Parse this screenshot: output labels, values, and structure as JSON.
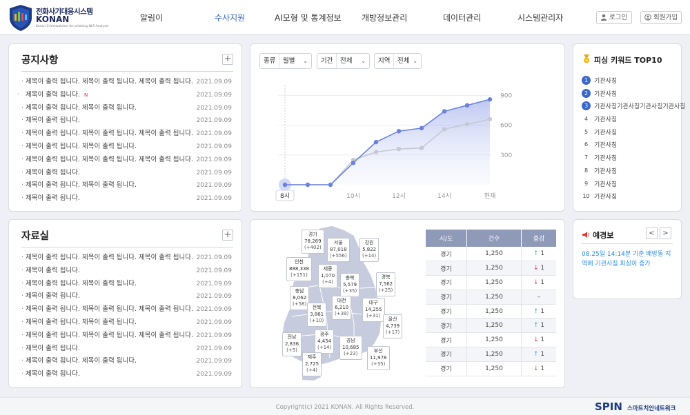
{
  "header": {
    "logo_title": "전화사기대응시스템",
    "logo_name": "KONAN",
    "logo_sub": "Konan Crimewatcher for phishing NLP Analysis",
    "nav": [
      "알림이",
      "수사지원",
      "AI모형 및 통계정보",
      "개방정보관리",
      "데이터관리",
      "시스템관리자"
    ],
    "active_nav": "수사지원",
    "login": "로그인",
    "signup": "회원가입"
  },
  "notice": {
    "title": "공지사항",
    "plus": "+",
    "items": [
      {
        "title": "제목이 출력 됩니다. 제목이 출력 됩니다. 제목이 출력 됩니다.",
        "new": false,
        "date": "2021.09.09"
      },
      {
        "title": "제목이 출력 됩니다.",
        "new": true,
        "date": "2021.09.09"
      },
      {
        "title": "제목이 출력 됩니다. 제목이 출력 됩니다.",
        "new": false,
        "date": "2021.09.09"
      },
      {
        "title": "제목이 출력 됩니다.",
        "new": false,
        "date": "2021.09.09"
      },
      {
        "title": "제목이 출력 됩니다. 제목이 출력 됩니다. 제목이 출력 됩니다.",
        "new": false,
        "date": "2021.09.09"
      },
      {
        "title": "제목이 출력 됩니다. 제목이 출력 됩니다.",
        "new": false,
        "date": "2021.09.09"
      },
      {
        "title": "제목이 출력 됩니다. 제목이 출력 됩니다. 제목이 출력 됩니다.",
        "new": false,
        "date": "2021.09.09"
      },
      {
        "title": "제목이 출력 됩니다.",
        "new": false,
        "date": "2021.09.09"
      },
      {
        "title": "제목이 출력 됩니다. 제목이 출력 됩니다.",
        "new": false,
        "date": "2021.09.09"
      },
      {
        "title": "제목이 출력 됩니다.",
        "new": false,
        "date": "2021.09.09"
      }
    ],
    "new_label": "N"
  },
  "archive": {
    "title": "자료실",
    "plus": "+",
    "items": [
      {
        "title": "제목이 출력 됩니다. 제목이 출력 됩니다. 제목이 출력 됩니다.",
        "date": "2021.09.09"
      },
      {
        "title": "제목이 출력 됩니다.",
        "date": "2021.09.09"
      },
      {
        "title": "제목이 출력 됩니다. 제목이 출력 됩니다.",
        "date": "2021.09.09"
      },
      {
        "title": "제목이 출력 됩니다.",
        "date": "2021.09.09"
      },
      {
        "title": "제목이 출력 됩니다. 제목이 출력 됩니다. 제목이 출력 됩니다.",
        "date": "2021.09.09"
      },
      {
        "title": "제목이 출력 됩니다. 제목이 출력 됩니다.",
        "date": "2021.09.09"
      },
      {
        "title": "제목이 출력 됩니다. 제목이 출력 됩니다. 제목이 출력 됩니다.",
        "date": "2021.09.09"
      },
      {
        "title": "제목이 출력 됩니다.",
        "date": "2021.09.09"
      },
      {
        "title": "제목이 출력 됩니다. 제목이 출력 됩니다.",
        "date": "2021.09.09"
      },
      {
        "title": "제목이 출력 됩니다.",
        "date": "2021.09.09"
      }
    ]
  },
  "filters": [
    {
      "label": "종류",
      "value": "월별"
    },
    {
      "label": "기간",
      "value": "전체"
    },
    {
      "label": "지역",
      "value": "전체"
    }
  ],
  "chart_data": {
    "type": "area",
    "x": [
      "8시",
      "",
      "",
      "10시",
      "",
      "12시",
      "",
      "14시",
      "",
      "현재"
    ],
    "xticks": [
      "8시",
      "10시",
      "12시",
      "14시",
      "현재"
    ],
    "highlight": "8시",
    "yticks": [
      900,
      600,
      300
    ],
    "ylim": [
      0,
      1000
    ],
    "series": [
      {
        "values": [
          0,
          0,
          0,
          220,
          430,
          540,
          570,
          740,
          800,
          860
        ],
        "color": "#6b82dd"
      },
      {
        "values": [
          0,
          0,
          0,
          250,
          330,
          360,
          370,
          560,
          610,
          660
        ],
        "color": "#c5c9d3"
      }
    ]
  },
  "top10": {
    "title": "피싱 키워드 TOP10",
    "items": [
      {
        "rank": "1",
        "keyword": "기관사칭"
      },
      {
        "rank": "2",
        "keyword": "기관사칭"
      },
      {
        "rank": "3",
        "keyword": "기관사칭기관사칭기관사칭기관사칭"
      },
      {
        "rank": "4",
        "keyword": "기관사칭"
      },
      {
        "rank": "5",
        "keyword": "기관사칭"
      },
      {
        "rank": "6",
        "keyword": "기관사칭"
      },
      {
        "rank": "7",
        "keyword": "기관사칭"
      },
      {
        "rank": "8",
        "keyword": "기관사칭"
      },
      {
        "rank": "9",
        "keyword": "기관사칭"
      },
      {
        "rank": "10",
        "keyword": "기관사칭"
      }
    ]
  },
  "alert": {
    "title": "예경보",
    "text": "08.25일 14:14분 기준 배방동 지역에 기관사칭 피싱이 증가",
    "prev": "<",
    "next": ">"
  },
  "map_regions": [
    {
      "name": "경기",
      "value": "78,269",
      "delta": "(+402)"
    },
    {
      "name": "서울",
      "value": "87,018",
      "delta": "(+556)"
    },
    {
      "name": "강원",
      "value": "5,822",
      "delta": "(+14)"
    },
    {
      "name": "인천",
      "value": "888,338",
      "delta": "(+151)"
    },
    {
      "name": "세종",
      "value": "1,070",
      "delta": "(+4)"
    },
    {
      "name": "충북",
      "value": "5,579",
      "delta": "(+35)"
    },
    {
      "name": "경북",
      "value": "7,562",
      "delta": "(+25)"
    },
    {
      "name": "충남",
      "value": "8,062",
      "delta": "(+58)"
    },
    {
      "name": "대전",
      "value": "6,210",
      "delta": "(+39)"
    },
    {
      "name": "대구",
      "value": "14,255",
      "delta": "(+31)"
    },
    {
      "name": "전북",
      "value": "3,861",
      "delta": "(+10)"
    },
    {
      "name": "울산",
      "value": "4,739",
      "delta": "(+17)"
    },
    {
      "name": "광주",
      "value": "4,454",
      "delta": "(+14)"
    },
    {
      "name": "전남",
      "value": "2,836",
      "delta": "(+5)"
    },
    {
      "name": "경남",
      "value": "10,685",
      "delta": "(+23)"
    },
    {
      "name": "부산",
      "value": "11,978",
      "delta": "(+35)"
    },
    {
      "name": "제주",
      "value": "2,725",
      "delta": "(+4)"
    }
  ],
  "region_table": {
    "headers": [
      "시/도",
      "건수",
      "증감"
    ],
    "rows": [
      {
        "region": "경기",
        "count": "1,250",
        "trend": "up",
        "change": "1"
      },
      {
        "region": "경기",
        "count": "1,250",
        "trend": "down",
        "change": "1"
      },
      {
        "region": "경기",
        "count": "1,250",
        "trend": "down",
        "change": "1"
      },
      {
        "region": "경기",
        "count": "1,250",
        "trend": "flat",
        "change": "–"
      },
      {
        "region": "경기",
        "count": "1,250",
        "trend": "up",
        "change": "1"
      },
      {
        "region": "경기",
        "count": "1,250",
        "trend": "up",
        "change": "1"
      },
      {
        "region": "경기",
        "count": "1,250",
        "trend": "down",
        "change": "1"
      },
      {
        "region": "경기",
        "count": "1,250",
        "trend": "up",
        "change": "1"
      },
      {
        "region": "경기",
        "count": "1,250",
        "trend": "down",
        "change": "1"
      }
    ]
  },
  "footer": {
    "copyright": "Copyright(c) 2021 KONAN. All Rights Reserved.",
    "brand": "SPIN",
    "brand_sub": "스마트치안네트워크"
  }
}
